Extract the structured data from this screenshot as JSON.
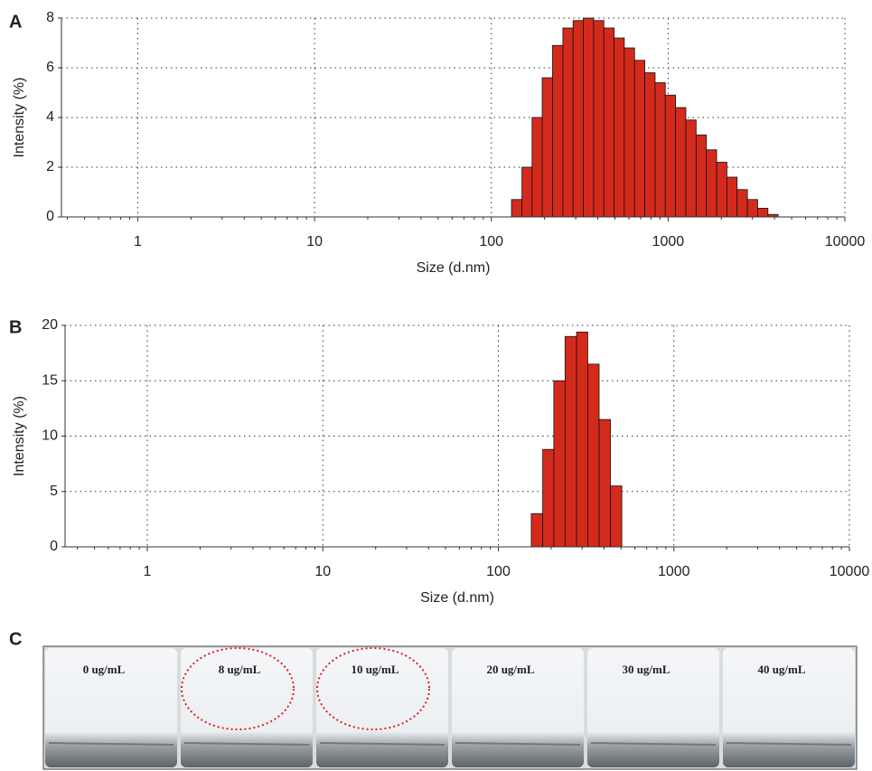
{
  "chart_data": [
    {
      "type": "histogram",
      "panel_label": "A",
      "x_label": "Size (d.nm)",
      "y_label": "Intensity (%)",
      "logx": true,
      "grid": true,
      "color": "#d42a1c",
      "bins": [
        130,
        149,
        170,
        194,
        222,
        254,
        290,
        331,
        379,
        433,
        495,
        565,
        646,
        738,
        844,
        964,
        1102,
        1260,
        1440,
        1646,
        1881,
        2150,
        2457,
        2809,
        3210,
        3669,
        4194
      ],
      "values": [
        0.7,
        2.0,
        4.0,
        5.6,
        6.9,
        7.6,
        7.9,
        8.0,
        7.9,
        7.6,
        7.2,
        6.8,
        6.3,
        5.8,
        5.4,
        4.9,
        4.4,
        3.9,
        3.3,
        2.7,
        2.2,
        1.6,
        1.1,
        0.7,
        0.35,
        0.1
      ],
      "xlim": [
        0.37,
        10000
      ],
      "xticks": [
        1,
        10,
        100,
        1000,
        10000
      ],
      "ylim": [
        0,
        8
      ],
      "yticks": [
        0,
        2,
        4,
        6,
        8
      ]
    },
    {
      "type": "histogram",
      "panel_label": "B",
      "x_label": "Size (d.nm)",
      "y_label": "Intensity (%)",
      "logx": true,
      "grid": true,
      "color": "#d42a1c",
      "bins": [
        154,
        179,
        207,
        240,
        279,
        323,
        375,
        435,
        505
      ],
      "values": [
        3.0,
        8.8,
        15.0,
        19.0,
        19.4,
        16.5,
        11.5,
        5.5
      ],
      "xlim": [
        0.34,
        10000
      ],
      "xticks": [
        1,
        10,
        100,
        1000,
        10000
      ],
      "ylim": [
        0,
        20
      ],
      "yticks": [
        0,
        5,
        10,
        15,
        20
      ]
    }
  ],
  "photo": {
    "panel_label": "C",
    "labels": [
      "0 ug/mL",
      "8 ug/mL",
      "10 ug/mL",
      "20 ug/mL",
      "30 ug/mL",
      "40 ug/mL"
    ],
    "circled": [
      1,
      2
    ]
  }
}
